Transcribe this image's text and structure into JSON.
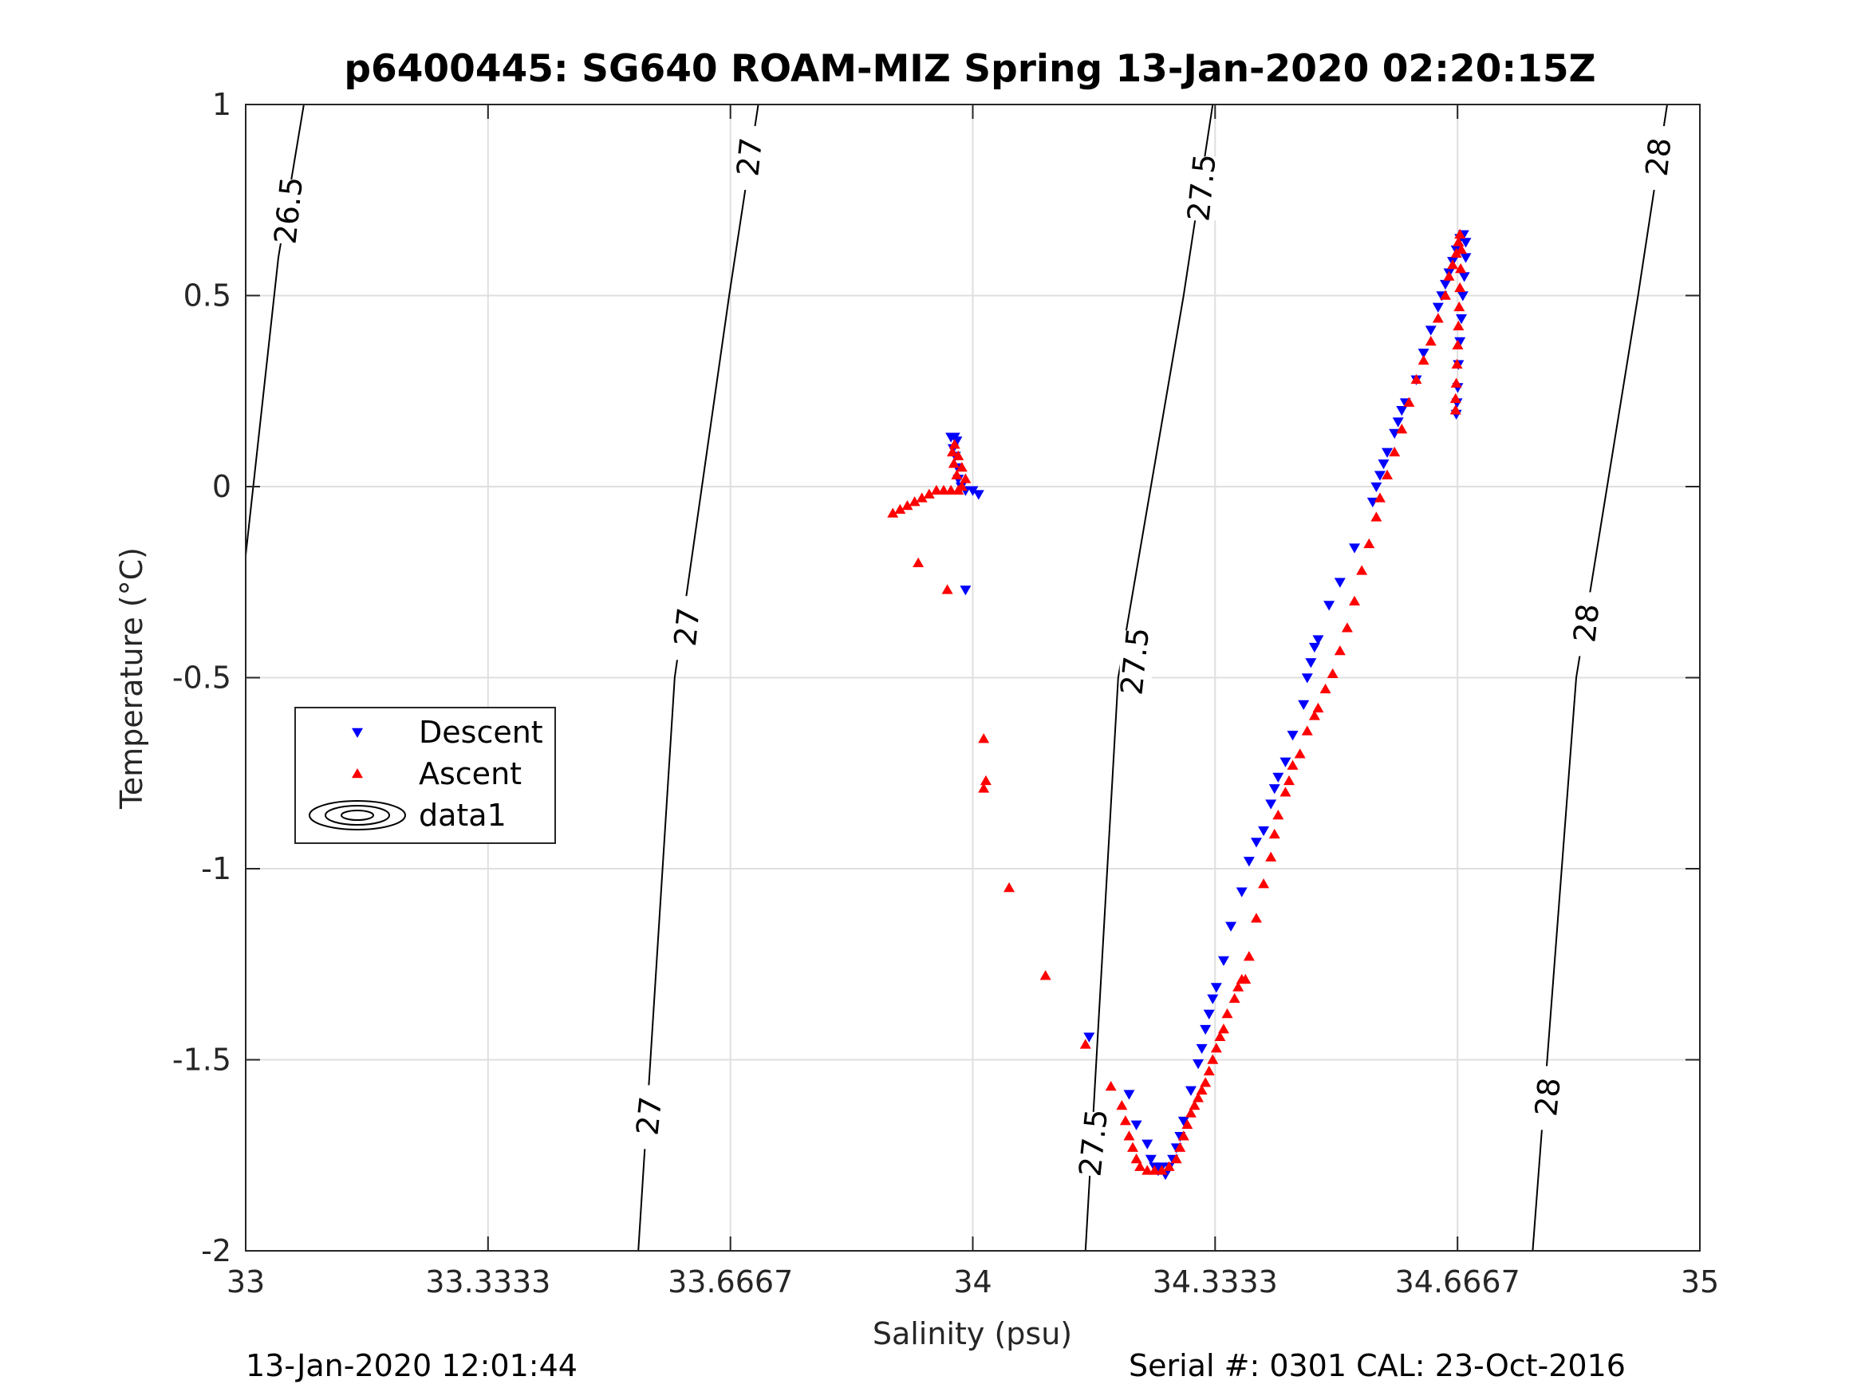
{
  "chart_data": {
    "type": "scatter",
    "title": "p6400445: SG640 ROAM-MIZ Spring 13-Jan-2020 02:20:15Z",
    "xlabel": "Salinity (psu)",
    "ylabel": "Temperature (°C)",
    "xlim": [
      33,
      35
    ],
    "ylim": [
      -2,
      1
    ],
    "xticks": [
      33,
      33.3333,
      33.6667,
      34,
      34.3333,
      34.6667,
      35
    ],
    "xtick_labels": [
      "33",
      "33.3333",
      "33.6667",
      "34",
      "34.3333",
      "34.6667",
      "35"
    ],
    "yticks": [
      -2,
      -1.5,
      -1,
      -0.5,
      0,
      0.5,
      1
    ],
    "ytick_labels": [
      "-2",
      "-1.5",
      "-1",
      "-0.5",
      "0",
      "0.5",
      "1"
    ],
    "grid": true,
    "legend_position": "middle-left",
    "legend": [
      {
        "name": "Descent",
        "marker": "triangle-down",
        "color": "#0000ff"
      },
      {
        "name": "Ascent",
        "marker": "triangle-up",
        "color": "#ff0000"
      },
      {
        "name": "data1",
        "marker": "contour-ellipses",
        "color": "#000000"
      }
    ],
    "series": [
      {
        "name": "Descent",
        "marker": "triangle-down",
        "color": "#0000ff",
        "points": [
          [
            33.97,
            0.13
          ],
          [
            33.975,
            0.13
          ],
          [
            33.978,
            0.12
          ],
          [
            33.973,
            0.1
          ],
          [
            33.976,
            0.08
          ],
          [
            33.979,
            0.05
          ],
          [
            33.98,
            0.02
          ],
          [
            33.984,
            0.0
          ],
          [
            33.99,
            -0.01
          ],
          [
            34.0,
            -0.01
          ],
          [
            34.008,
            -0.02
          ],
          [
            33.99,
            -0.27
          ],
          [
            34.16,
            -1.44
          ],
          [
            34.215,
            -1.59
          ],
          [
            34.225,
            -1.67
          ],
          [
            34.24,
            -1.72
          ],
          [
            34.245,
            -1.76
          ],
          [
            34.25,
            -1.78
          ],
          [
            34.255,
            -1.79
          ],
          [
            34.26,
            -1.78
          ],
          [
            34.265,
            -1.8
          ],
          [
            34.27,
            -1.78
          ],
          [
            34.275,
            -1.76
          ],
          [
            34.28,
            -1.73
          ],
          [
            34.285,
            -1.7
          ],
          [
            34.29,
            -1.66
          ],
          [
            34.3,
            -1.58
          ],
          [
            34.31,
            -1.51
          ],
          [
            34.315,
            -1.47
          ],
          [
            34.32,
            -1.42
          ],
          [
            34.325,
            -1.38
          ],
          [
            34.33,
            -1.34
          ],
          [
            34.335,
            -1.31
          ],
          [
            34.345,
            -1.24
          ],
          [
            34.355,
            -1.15
          ],
          [
            34.37,
            -1.06
          ],
          [
            34.38,
            -0.98
          ],
          [
            34.39,
            -0.93
          ],
          [
            34.4,
            -0.9
          ],
          [
            34.41,
            -0.83
          ],
          [
            34.415,
            -0.79
          ],
          [
            34.42,
            -0.76
          ],
          [
            34.43,
            -0.72
          ],
          [
            34.44,
            -0.65
          ],
          [
            34.455,
            -0.57
          ],
          [
            34.46,
            -0.5
          ],
          [
            34.465,
            -0.46
          ],
          [
            34.47,
            -0.42
          ],
          [
            34.475,
            -0.4
          ],
          [
            34.49,
            -0.31
          ],
          [
            34.505,
            -0.25
          ],
          [
            34.525,
            -0.16
          ],
          [
            34.55,
            -0.04
          ],
          [
            34.555,
            0.0
          ],
          [
            34.56,
            0.03
          ],
          [
            34.565,
            0.06
          ],
          [
            34.57,
            0.09
          ],
          [
            34.58,
            0.14
          ],
          [
            34.585,
            0.17
          ],
          [
            34.59,
            0.2
          ],
          [
            34.595,
            0.22
          ],
          [
            34.61,
            0.28
          ],
          [
            34.62,
            0.35
          ],
          [
            34.63,
            0.41
          ],
          [
            34.64,
            0.47
          ],
          [
            34.645,
            0.5
          ],
          [
            34.65,
            0.53
          ],
          [
            34.655,
            0.56
          ],
          [
            34.66,
            0.59
          ],
          [
            34.665,
            0.62
          ],
          [
            34.67,
            0.65
          ],
          [
            34.675,
            0.66
          ],
          [
            34.678,
            0.64
          ],
          [
            34.678,
            0.6
          ],
          [
            34.676,
            0.55
          ],
          [
            34.674,
            0.5
          ],
          [
            34.672,
            0.44
          ],
          [
            34.67,
            0.38
          ],
          [
            34.668,
            0.32
          ],
          [
            34.667,
            0.26
          ],
          [
            34.666,
            0.22
          ],
          [
            34.665,
            0.19
          ]
        ]
      },
      {
        "name": "Ascent",
        "marker": "triangle-up",
        "color": "#ff0000",
        "points": [
          [
            33.89,
            -0.07
          ],
          [
            33.9,
            -0.06
          ],
          [
            33.91,
            -0.05
          ],
          [
            33.92,
            -0.04
          ],
          [
            33.93,
            -0.03
          ],
          [
            33.94,
            -0.02
          ],
          [
            33.95,
            -0.01
          ],
          [
            33.96,
            -0.01
          ],
          [
            33.97,
            -0.01
          ],
          [
            33.98,
            -0.01
          ],
          [
            33.985,
            0.0
          ],
          [
            33.978,
            0.03
          ],
          [
            33.974,
            0.06
          ],
          [
            33.972,
            0.09
          ],
          [
            33.975,
            0.11
          ],
          [
            33.98,
            0.08
          ],
          [
            33.985,
            0.05
          ],
          [
            33.99,
            0.02
          ],
          [
            33.925,
            -0.2
          ],
          [
            33.965,
            -0.27
          ],
          [
            34.015,
            -0.66
          ],
          [
            34.018,
            -0.77
          ],
          [
            34.015,
            -0.79
          ],
          [
            34.05,
            -1.05
          ],
          [
            34.1,
            -1.28
          ],
          [
            34.155,
            -1.46
          ],
          [
            34.19,
            -1.57
          ],
          [
            34.205,
            -1.62
          ],
          [
            34.21,
            -1.66
          ],
          [
            34.215,
            -1.7
          ],
          [
            34.22,
            -1.73
          ],
          [
            34.225,
            -1.76
          ],
          [
            34.23,
            -1.78
          ],
          [
            34.24,
            -1.79
          ],
          [
            34.25,
            -1.79
          ],
          [
            34.26,
            -1.79
          ],
          [
            34.27,
            -1.78
          ],
          [
            34.28,
            -1.76
          ],
          [
            34.285,
            -1.73
          ],
          [
            34.29,
            -1.7
          ],
          [
            34.295,
            -1.67
          ],
          [
            34.3,
            -1.64
          ],
          [
            34.305,
            -1.62
          ],
          [
            34.31,
            -1.6
          ],
          [
            34.315,
            -1.58
          ],
          [
            34.32,
            -1.56
          ],
          [
            34.325,
            -1.53
          ],
          [
            34.33,
            -1.5
          ],
          [
            34.335,
            -1.47
          ],
          [
            34.34,
            -1.44
          ],
          [
            34.345,
            -1.42
          ],
          [
            34.35,
            -1.38
          ],
          [
            34.36,
            -1.34
          ],
          [
            34.365,
            -1.31
          ],
          [
            34.37,
            -1.29
          ],
          [
            34.375,
            -1.29
          ],
          [
            34.38,
            -1.23
          ],
          [
            34.39,
            -1.13
          ],
          [
            34.4,
            -1.04
          ],
          [
            34.41,
            -0.97
          ],
          [
            34.415,
            -0.91
          ],
          [
            34.42,
            -0.86
          ],
          [
            34.43,
            -0.8
          ],
          [
            34.435,
            -0.77
          ],
          [
            34.44,
            -0.73
          ],
          [
            34.45,
            -0.7
          ],
          [
            34.46,
            -0.64
          ],
          [
            34.47,
            -0.6
          ],
          [
            34.475,
            -0.58
          ],
          [
            34.485,
            -0.53
          ],
          [
            34.495,
            -0.49
          ],
          [
            34.505,
            -0.43
          ],
          [
            34.515,
            -0.37
          ],
          [
            34.525,
            -0.3
          ],
          [
            34.535,
            -0.22
          ],
          [
            34.545,
            -0.15
          ],
          [
            34.555,
            -0.08
          ],
          [
            34.56,
            -0.03
          ],
          [
            34.57,
            0.03
          ],
          [
            34.58,
            0.09
          ],
          [
            34.59,
            0.15
          ],
          [
            34.6,
            0.22
          ],
          [
            34.61,
            0.28
          ],
          [
            34.62,
            0.33
          ],
          [
            34.63,
            0.38
          ],
          [
            34.64,
            0.44
          ],
          [
            34.65,
            0.5
          ],
          [
            34.655,
            0.55
          ],
          [
            34.66,
            0.58
          ],
          [
            34.665,
            0.61
          ],
          [
            34.668,
            0.64
          ],
          [
            34.67,
            0.66
          ],
          [
            34.672,
            0.62
          ],
          [
            34.671,
            0.57
          ],
          [
            34.67,
            0.52
          ],
          [
            34.669,
            0.47
          ],
          [
            34.668,
            0.42
          ],
          [
            34.667,
            0.37
          ],
          [
            34.666,
            0.32
          ],
          [
            34.665,
            0.27
          ],
          [
            34.664,
            0.23
          ],
          [
            34.664,
            0.2
          ]
        ]
      }
    ],
    "contours": [
      {
        "label": "26.5",
        "points": [
          [
            33.08,
            1.0
          ],
          [
            33.045,
            0.6
          ],
          [
            33.0,
            -0.18
          ]
        ],
        "label_positions": [
          [
            33.06,
            0.72
          ]
        ]
      },
      {
        "label": "27",
        "points": [
          [
            33.705,
            1.0
          ],
          [
            33.665,
            0.5
          ],
          [
            33.59,
            -0.5
          ],
          [
            33.54,
            -2.0
          ]
        ],
        "label_positions": [
          [
            33.694,
            0.86
          ],
          [
            33.608,
            -0.37
          ],
          [
            33.556,
            -1.65
          ]
        ]
      },
      {
        "label": "27.5",
        "points": [
          [
            34.33,
            1.0
          ],
          [
            34.29,
            0.5
          ],
          [
            34.2,
            -0.5
          ],
          [
            34.155,
            -2.0
          ]
        ],
        "label_positions": [
          [
            34.316,
            0.78
          ],
          [
            34.224,
            -0.46
          ],
          [
            34.167,
            -1.72
          ]
        ]
      },
      {
        "label": "28",
        "points": [
          [
            34.955,
            1.0
          ],
          [
            34.915,
            0.5
          ],
          [
            34.83,
            -0.5
          ],
          [
            34.77,
            -2.0
          ]
        ],
        "label_positions": [
          [
            34.944,
            0.86
          ],
          [
            34.845,
            -0.36
          ],
          [
            34.792,
            -1.6
          ]
        ]
      }
    ]
  },
  "footer": {
    "left": "13-Jan-2020 12:01:44",
    "right": "Serial #: 0301  CAL: 23-Oct-2016"
  }
}
